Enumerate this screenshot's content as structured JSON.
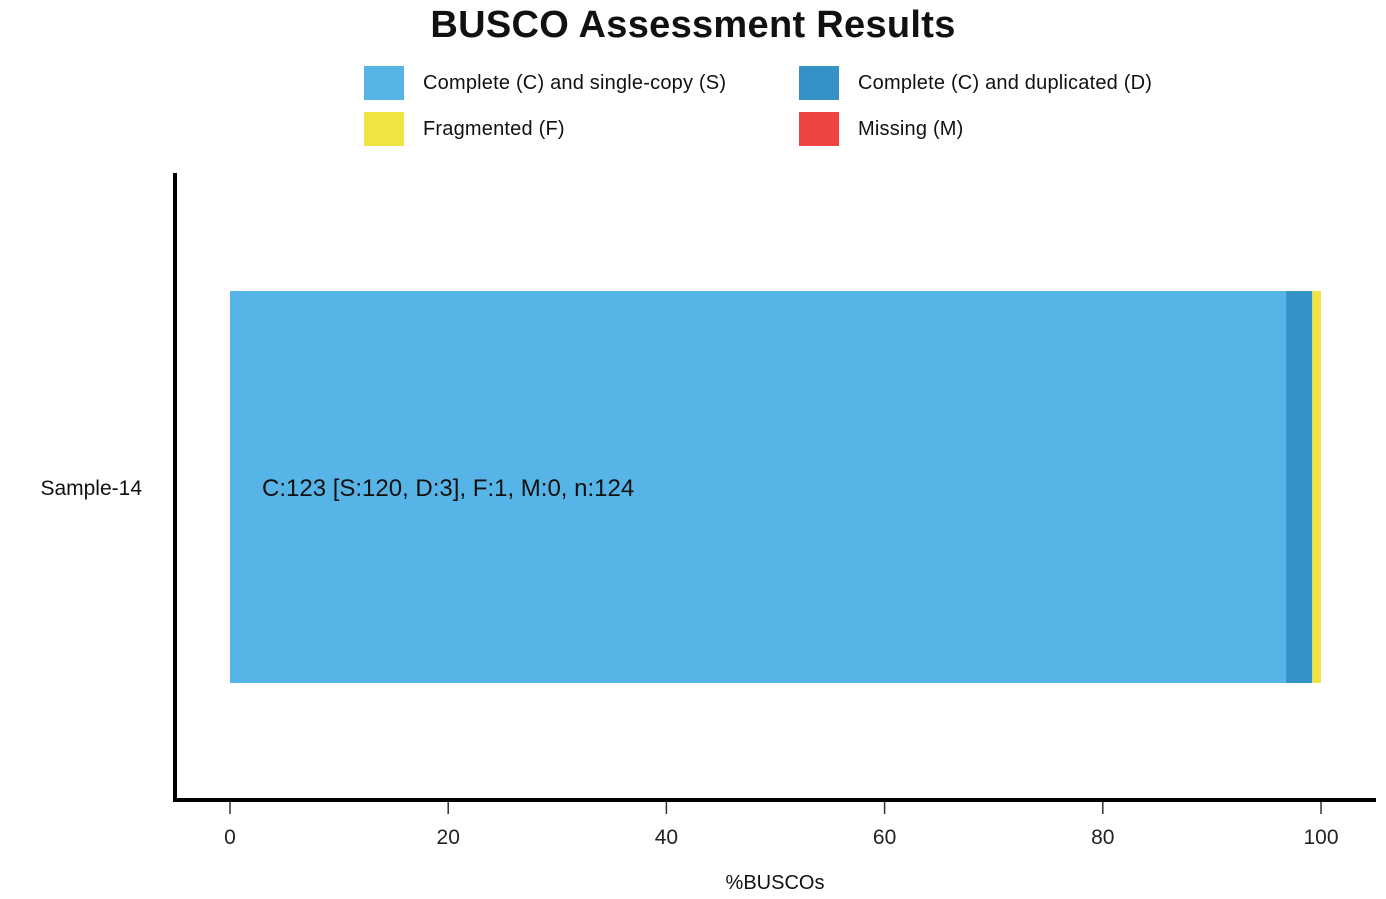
{
  "chart_data": {
    "type": "bar",
    "orientation": "horizontal",
    "stacked": true,
    "title": "BUSCO Assessment Results",
    "xlabel": "%BUSCOs",
    "ylabel": "",
    "xlim": [
      0,
      100
    ],
    "xticks": [
      "0",
      "20",
      "40",
      "60",
      "80",
      "100"
    ],
    "categories": [
      "Sample-14"
    ],
    "series": [
      {
        "name": "Complete (C) and single-copy (S)",
        "color": "#56B4E6",
        "values": [
          96.8
        ]
      },
      {
        "name": "Complete (C) and duplicated (D)",
        "color": "#3492C7",
        "values": [
          2.4
        ]
      },
      {
        "name": "Fragmented (F)",
        "color": "#F0E442",
        "values": [
          0.8
        ]
      },
      {
        "name": "Missing (M)",
        "color": "#F04442",
        "values": [
          0.0
        ]
      }
    ],
    "bar_annotation": "C:123 [S:120, D:3], F:1, M:0, n:124",
    "legend_position": "top",
    "grid": false
  }
}
